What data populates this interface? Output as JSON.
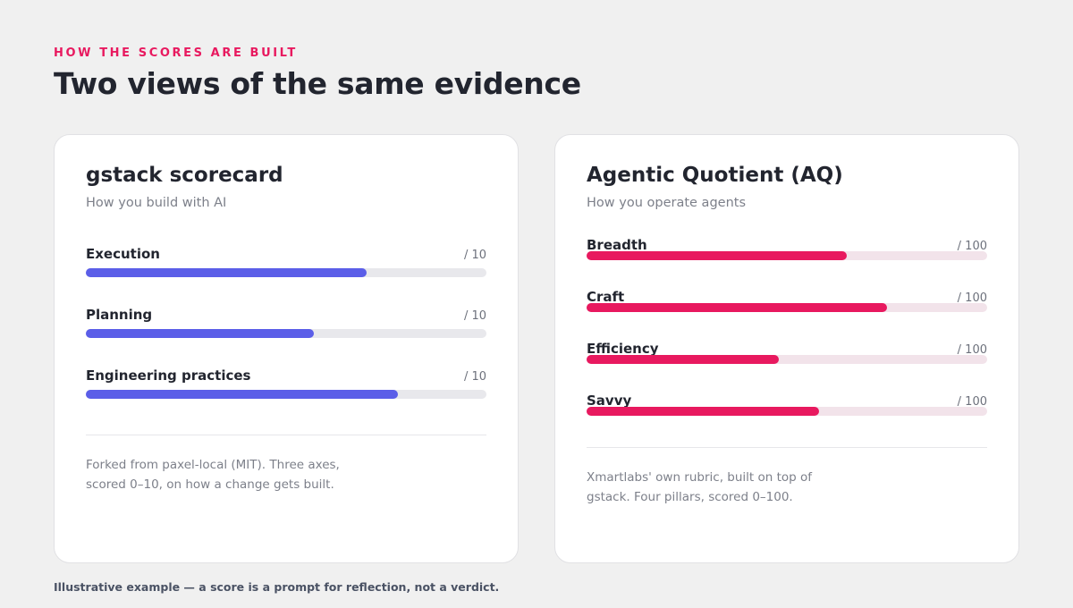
{
  "header": {
    "eyebrow": "HOW THE SCORES ARE BUILT",
    "title": "Two views of the same evidence"
  },
  "cards": [
    {
      "title": "gstack scorecard",
      "subtitle": "How you build with AI",
      "accent_color": "#5b5ee8",
      "track_color": "#e8e8ec",
      "metrics": [
        {
          "label": "Execution",
          "scale": "/ 10",
          "fill_fraction": 0.7
        },
        {
          "label": "Planning",
          "scale": "/ 10",
          "fill_fraction": 0.57
        },
        {
          "label": "Engineering practices",
          "scale": "/ 10",
          "fill_fraction": 0.78
        }
      ],
      "description_lines": [
        "Forked from paxel-local (MIT). Three axes,",
        "scored 0–10, on how a change gets built."
      ]
    },
    {
      "title": "Agentic Quotient (AQ)",
      "subtitle": "How you operate agents",
      "accent_color": "#e8195f",
      "track_color": "#f2e3ea",
      "metrics": [
        {
          "label": "Breadth",
          "scale": "/ 100",
          "fill_fraction": 0.65
        },
        {
          "label": "Craft",
          "scale": "/ 100",
          "fill_fraction": 0.75
        },
        {
          "label": "Efficiency",
          "scale": "/ 100",
          "fill_fraction": 0.48
        },
        {
          "label": "Savvy",
          "scale": "/ 100",
          "fill_fraction": 0.58
        }
      ],
      "description_lines": [
        "Xmartlabs' own rubric, built on top of",
        "gstack. Four pillars, scored 0–100."
      ]
    }
  ],
  "footnote": "Illustrative example — a score is a prompt for reflection, not a verdict."
}
